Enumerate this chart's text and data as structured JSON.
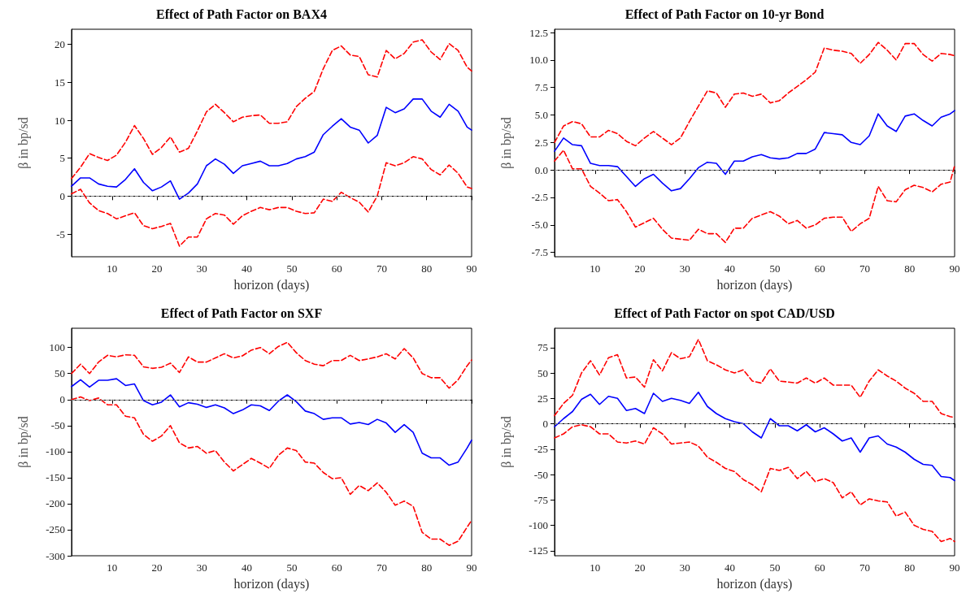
{
  "chart_data": [
    {
      "type": "line",
      "title": "Effect of Path Factor on BAX4",
      "xlabel": "horizon (days)",
      "ylabel": "β in bp/sd",
      "xlim": [
        1,
        90
      ],
      "xticks": [
        10,
        20,
        30,
        40,
        50,
        60,
        70,
        80,
        90
      ],
      "ylim": [
        -8,
        22
      ],
      "yticks": [
        -5,
        0,
        5,
        10,
        15,
        20
      ],
      "x": [
        1,
        3,
        5,
        7,
        9,
        11,
        13,
        15,
        17,
        19,
        21,
        23,
        25,
        27,
        29,
        31,
        33,
        35,
        37,
        39,
        41,
        43,
        45,
        47,
        49,
        51,
        53,
        55,
        57,
        59,
        61,
        63,
        65,
        67,
        69,
        71,
        73,
        75,
        77,
        79,
        81,
        83,
        85,
        87,
        89,
        90
      ],
      "ref_lines": [
        {
          "axis": "y",
          "value": 0,
          "color": "#808080",
          "line_style": "dashed"
        }
      ],
      "series": [
        {
          "color": "#ff0000",
          "line_style": "dashed",
          "values": [
            2.3,
            3.8,
            5.6,
            5.1,
            4.7,
            5.4,
            7.1,
            9.3,
            7.6,
            5.5,
            6.4,
            7.8,
            5.8,
            6.3,
            8.6,
            11.1,
            12.1,
            11.0,
            9.8,
            10.4,
            10.6,
            10.7,
            9.6,
            9.6,
            9.8,
            11.8,
            12.9,
            13.8,
            16.8,
            19.2,
            19.8,
            18.6,
            18.4,
            16.0,
            15.7,
            19.2,
            18.1,
            18.8,
            20.3,
            20.6,
            19.0,
            18.0,
            20.1,
            19.2,
            17.0,
            16.5
          ]
        },
        {
          "color": "#0000ff",
          "line_style": "solid",
          "values": [
            1.3,
            2.4,
            2.4,
            1.6,
            1.3,
            1.2,
            2.2,
            3.6,
            1.8,
            0.7,
            1.2,
            2.0,
            -0.4,
            0.4,
            1.6,
            4.0,
            4.9,
            4.2,
            3.0,
            4.0,
            4.3,
            4.6,
            4.0,
            4.0,
            4.3,
            4.9,
            5.2,
            5.8,
            8.1,
            9.2,
            10.2,
            9.1,
            8.7,
            7.0,
            8.0,
            11.7,
            11.0,
            11.5,
            12.8,
            12.8,
            11.2,
            10.4,
            12.1,
            11.2,
            9.1,
            8.7
          ]
        },
        {
          "color": "#ff0000",
          "line_style": "dashed",
          "values": [
            0.3,
            0.9,
            -0.9,
            -1.9,
            -2.3,
            -3.0,
            -2.6,
            -2.2,
            -3.9,
            -4.3,
            -4.0,
            -3.6,
            -6.6,
            -5.4,
            -5.4,
            -3.0,
            -2.3,
            -2.5,
            -3.7,
            -2.6,
            -2.0,
            -1.5,
            -1.8,
            -1.5,
            -1.5,
            -2.0,
            -2.3,
            -2.2,
            -0.4,
            -0.7,
            0.5,
            -0.2,
            -0.8,
            -2.1,
            0.0,
            4.4,
            4.0,
            4.4,
            5.2,
            4.9,
            3.5,
            2.8,
            4.1,
            3.0,
            1.2,
            1.0
          ]
        }
      ]
    },
    {
      "type": "line",
      "title": "Effect of Path Factor on 10-yr Bond",
      "xlabel": "horizon (days)",
      "ylabel": "β in bp/sd",
      "xlim": [
        1,
        90
      ],
      "xticks": [
        10,
        20,
        30,
        40,
        50,
        60,
        70,
        80,
        90
      ],
      "ylim": [
        -7.9,
        12.8
      ],
      "yticks": [
        {
          "value": -7.5,
          "label": "-7.5"
        },
        {
          "value": -5,
          "label": "-5.0"
        },
        {
          "value": -2.5,
          "label": "-2.5"
        },
        {
          "value": 0,
          "label": "0.0"
        },
        {
          "value": 2.5,
          "label": "2.5"
        },
        {
          "value": 5,
          "label": "5.0"
        },
        {
          "value": 7.5,
          "label": "7.5"
        },
        {
          "value": 10,
          "label": "10.0"
        },
        {
          "value": 12.5,
          "label": "12.5"
        }
      ],
      "x": [
        1,
        3,
        5,
        7,
        9,
        11,
        13,
        15,
        17,
        19,
        21,
        23,
        25,
        27,
        29,
        31,
        33,
        35,
        37,
        39,
        41,
        43,
        45,
        47,
        49,
        51,
        53,
        55,
        57,
        59,
        61,
        63,
        65,
        67,
        69,
        71,
        73,
        75,
        77,
        79,
        81,
        83,
        85,
        87,
        89,
        90
      ],
      "ref_lines": [
        {
          "axis": "y",
          "value": 0,
          "color": "#808080",
          "line_style": "dashed"
        }
      ],
      "series": [
        {
          "color": "#ff0000",
          "line_style": "dashed",
          "values": [
            2.5,
            4.0,
            4.4,
            4.2,
            3.0,
            3.0,
            3.6,
            3.3,
            2.6,
            2.2,
            2.9,
            3.5,
            2.9,
            2.3,
            2.9,
            4.4,
            5.8,
            7.2,
            7.0,
            5.7,
            6.9,
            7.0,
            6.7,
            6.9,
            6.1,
            6.3,
            7.0,
            7.6,
            8.2,
            8.9,
            11.1,
            10.9,
            10.8,
            10.6,
            9.7,
            10.5,
            11.6,
            10.9,
            10.0,
            11.5,
            11.5,
            10.5,
            9.9,
            10.6,
            10.5,
            10.4
          ]
        },
        {
          "color": "#0000ff",
          "line_style": "solid",
          "values": [
            1.7,
            2.9,
            2.3,
            2.2,
            0.6,
            0.4,
            0.4,
            0.3,
            -0.6,
            -1.5,
            -0.8,
            -0.4,
            -1.2,
            -1.9,
            -1.7,
            -0.8,
            0.2,
            0.7,
            0.6,
            -0.4,
            0.8,
            0.8,
            1.2,
            1.4,
            1.1,
            1.0,
            1.1,
            1.5,
            1.5,
            1.9,
            3.4,
            3.3,
            3.2,
            2.5,
            2.3,
            3.1,
            5.1,
            4.0,
            3.5,
            4.9,
            5.1,
            4.5,
            4.0,
            4.8,
            5.1,
            5.4
          ]
        },
        {
          "color": "#ff0000",
          "line_style": "dashed",
          "values": [
            0.8,
            1.8,
            0.1,
            0.1,
            -1.5,
            -2.1,
            -2.8,
            -2.7,
            -3.8,
            -5.2,
            -4.8,
            -4.4,
            -5.4,
            -6.2,
            -6.3,
            -6.4,
            -5.4,
            -5.8,
            -5.8,
            -6.6,
            -5.3,
            -5.3,
            -4.4,
            -4.1,
            -3.8,
            -4.2,
            -4.9,
            -4.6,
            -5.3,
            -5.0,
            -4.4,
            -4.3,
            -4.3,
            -5.6,
            -4.9,
            -4.4,
            -1.5,
            -2.8,
            -2.9,
            -1.8,
            -1.4,
            -1.6,
            -2.0,
            -1.3,
            -1.1,
            0.4
          ]
        }
      ]
    },
    {
      "type": "line",
      "title": "Effect of Path Factor on SXF",
      "xlabel": "horizon (days)",
      "ylabel": "β in bp/sd",
      "xlim": [
        1,
        90
      ],
      "xticks": [
        10,
        20,
        30,
        40,
        50,
        60,
        70,
        80,
        90
      ],
      "ylim": [
        -300,
        137
      ],
      "yticks": [
        -300,
        -250,
        -200,
        -150,
        -100,
        -50,
        0,
        50,
        100
      ],
      "x": [
        1,
        3,
        5,
        7,
        9,
        11,
        13,
        15,
        17,
        19,
        21,
        23,
        25,
        27,
        29,
        31,
        33,
        35,
        37,
        39,
        41,
        43,
        45,
        47,
        49,
        51,
        53,
        55,
        57,
        59,
        61,
        63,
        65,
        67,
        69,
        71,
        73,
        75,
        77,
        79,
        81,
        83,
        85,
        87,
        89,
        90
      ],
      "ref_lines": [
        {
          "axis": "y",
          "value": 0,
          "color": "#808080",
          "line_style": "dashed"
        }
      ],
      "series": [
        {
          "color": "#ff0000",
          "line_style": "dashed",
          "values": [
            50,
            68,
            50,
            72,
            85,
            82,
            86,
            85,
            63,
            60,
            62,
            70,
            52,
            82,
            72,
            72,
            80,
            88,
            80,
            84,
            95,
            100,
            88,
            102,
            110,
            90,
            75,
            68,
            65,
            75,
            75,
            85,
            75,
            78,
            82,
            88,
            78,
            98,
            80,
            50,
            42,
            42,
            22,
            38,
            65,
            76
          ]
        },
        {
          "color": "#0000ff",
          "line_style": "solid",
          "values": [
            25,
            38,
            24,
            37,
            37,
            40,
            27,
            30,
            -2,
            -10,
            -5,
            9,
            -14,
            -6,
            -9,
            -15,
            -10,
            -16,
            -27,
            -20,
            -10,
            -12,
            -21,
            -3,
            9,
            -4,
            -22,
            -27,
            -38,
            -35,
            -35,
            -47,
            -44,
            -48,
            -38,
            -45,
            -63,
            -48,
            -63,
            -103,
            -112,
            -112,
            -126,
            -120,
            -93,
            -78
          ]
        },
        {
          "color": "#ff0000",
          "line_style": "dashed",
          "values": [
            0,
            5,
            -2,
            3,
            -10,
            -10,
            -32,
            -35,
            -67,
            -80,
            -70,
            -50,
            -83,
            -93,
            -90,
            -103,
            -98,
            -120,
            -137,
            -125,
            -113,
            -122,
            -132,
            -107,
            -93,
            -98,
            -120,
            -122,
            -140,
            -152,
            -150,
            -182,
            -165,
            -175,
            -160,
            -178,
            -203,
            -195,
            -205,
            -255,
            -268,
            -268,
            -280,
            -272,
            -245,
            -232
          ]
        }
      ]
    },
    {
      "type": "line",
      "title": "Effect of Path Factor on spot CAD/USD",
      "xlabel": "horizon (days)",
      "ylabel": "β in bp/sd",
      "xlim": [
        1,
        90
      ],
      "xticks": [
        10,
        20,
        30,
        40,
        50,
        60,
        70,
        80,
        90
      ],
      "ylim": [
        -130,
        94
      ],
      "yticks": [
        -125,
        -100,
        -75,
        -50,
        -25,
        0,
        25,
        50,
        75
      ],
      "x": [
        1,
        3,
        5,
        7,
        9,
        11,
        13,
        15,
        17,
        19,
        21,
        23,
        25,
        27,
        29,
        31,
        33,
        35,
        37,
        39,
        41,
        43,
        45,
        47,
        49,
        51,
        53,
        55,
        57,
        59,
        61,
        63,
        65,
        67,
        69,
        71,
        73,
        75,
        77,
        79,
        81,
        83,
        85,
        87,
        89,
        90
      ],
      "ref_lines": [
        {
          "axis": "y",
          "value": 0,
          "color": "#808080",
          "line_style": "dashed"
        }
      ],
      "series": [
        {
          "color": "#ff0000",
          "line_style": "dashed",
          "values": [
            8,
            20,
            28,
            50,
            62,
            48,
            65,
            68,
            45,
            46,
            36,
            63,
            52,
            70,
            64,
            66,
            83,
            62,
            58,
            53,
            50,
            53,
            42,
            40,
            54,
            42,
            41,
            40,
            45,
            40,
            45,
            38,
            38,
            38,
            26,
            42,
            53,
            47,
            42,
            35,
            30,
            22,
            22,
            10,
            7,
            6
          ]
        },
        {
          "color": "#0000ff",
          "line_style": "solid",
          "values": [
            -3,
            5,
            12,
            24,
            29,
            19,
            27,
            25,
            13,
            15,
            10,
            30,
            22,
            25,
            23,
            20,
            31,
            17,
            10,
            5,
            2,
            0,
            -8,
            -14,
            5,
            -2,
            -2,
            -7,
            -1,
            -8,
            -4,
            -10,
            -17,
            -14,
            -28,
            -14,
            -12,
            -20,
            -23,
            -28,
            -35,
            -40,
            -41,
            -52,
            -53,
            -56
          ]
        },
        {
          "color": "#ff0000",
          "line_style": "dashed",
          "values": [
            -14,
            -10,
            -3,
            -1,
            -3,
            -10,
            -10,
            -18,
            -19,
            -17,
            -20,
            -4,
            -10,
            -20,
            -19,
            -18,
            -22,
            -33,
            -38,
            -44,
            -47,
            -55,
            -60,
            -67,
            -44,
            -46,
            -43,
            -54,
            -47,
            -57,
            -54,
            -58,
            -73,
            -67,
            -80,
            -74,
            -76,
            -77,
            -91,
            -87,
            -100,
            -104,
            -106,
            -116,
            -113,
            -116
          ]
        }
      ]
    }
  ]
}
